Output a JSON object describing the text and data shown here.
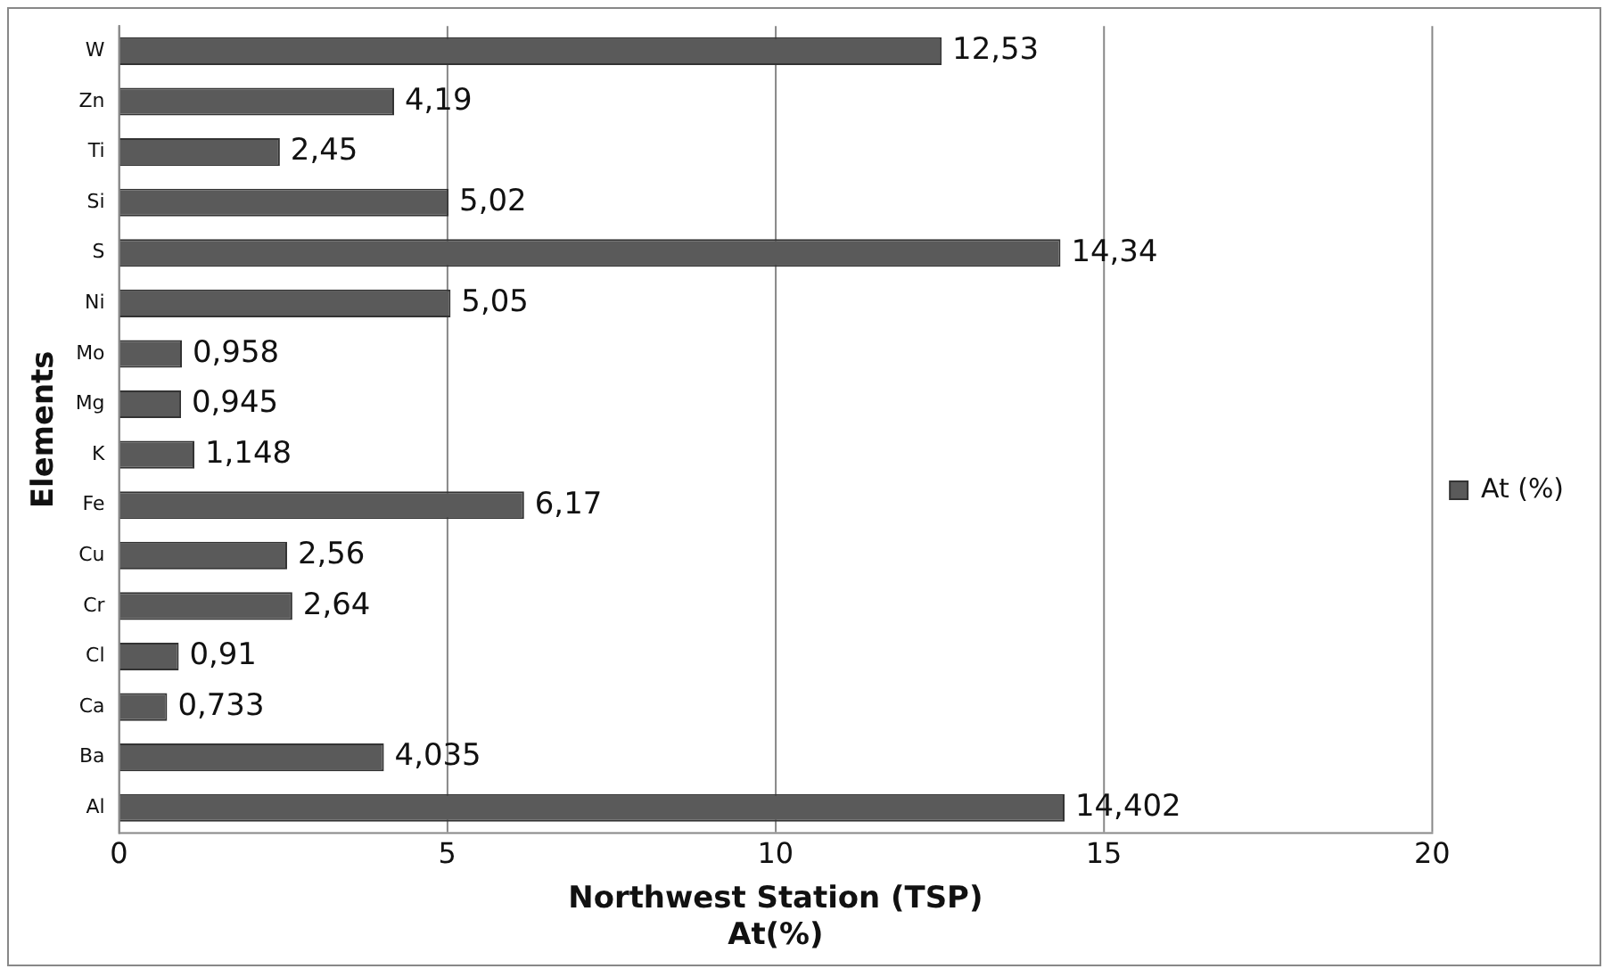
{
  "chart_data": {
    "type": "bar",
    "orientation": "horizontal",
    "xlabel": "Northwest Station (TSP)\nAt(%)",
    "ylabel": "Elements",
    "categories": [
      "W",
      "Zn",
      "Ti",
      "Si",
      "S",
      "Ni",
      "Mo",
      "Mg",
      "K",
      "Fe",
      "Cu",
      "Cr",
      "Cl",
      "Ca",
      "Ba",
      "Al"
    ],
    "series": [
      {
        "name": "At (%)",
        "color": "#5a5a5a",
        "values": [
          12.53,
          4.19,
          2.45,
          5.02,
          14.34,
          5.05,
          0.958,
          0.945,
          1.148,
          6.17,
          2.56,
          2.64,
          0.91,
          0.733,
          4.035,
          14.402
        ],
        "value_labels": [
          "12,53",
          "4,19",
          "2,45",
          "5,02",
          "14,34",
          "5,05",
          "0,958",
          "0,945",
          "1,148",
          "6,17",
          "2,56",
          "2,64",
          "0,91",
          "0,733",
          "4,035",
          "14,402"
        ]
      }
    ],
    "xlim": [
      0,
      20
    ],
    "xticks": [
      0,
      5,
      10,
      15,
      20
    ],
    "grid": "x",
    "legend": "right"
  }
}
